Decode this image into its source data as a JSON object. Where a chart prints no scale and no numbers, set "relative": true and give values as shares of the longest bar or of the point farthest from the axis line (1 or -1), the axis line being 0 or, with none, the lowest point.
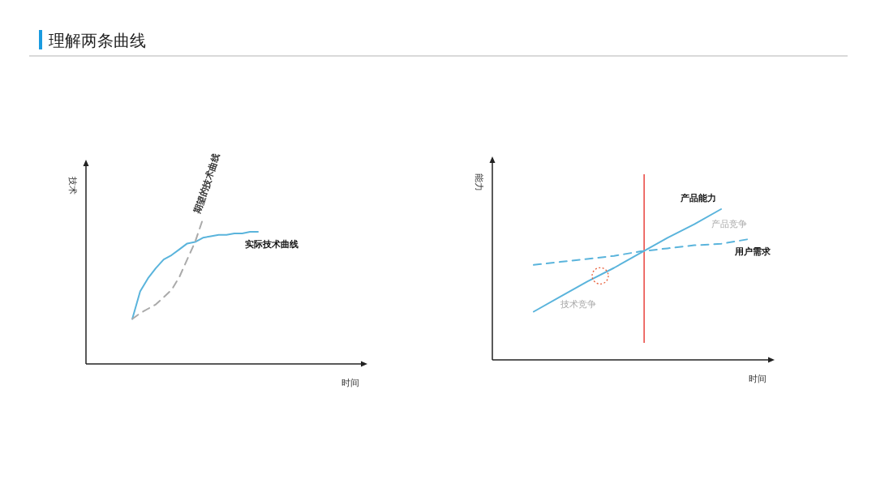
{
  "chart_data": [
    {
      "type": "line",
      "title": "理解两条曲线",
      "xlabel": "时间",
      "ylabel": "技术",
      "relative": true,
      "categories": [
        null,
        null,
        null,
        null,
        null,
        null,
        null,
        null,
        null,
        null,
        null,
        null,
        null,
        null,
        null,
        null,
        null,
        null,
        null,
        null,
        null,
        null,
        null,
        null,
        null,
        null,
        null,
        null,
        null,
        null,
        null,
        null,
        null,
        null,
        null,
        null
      ],
      "series": [
        {
          "name": "实际技术曲线",
          "color": "#5ab4dc",
          "values": [
            null,
            null,
            null,
            null,
            null,
            null,
            0.31,
            0.5,
            0.59,
            0.66,
            0.72,
            0.75,
            0.79,
            0.83,
            0.84,
            0.87,
            0.88,
            0.89,
            0.89,
            0.9,
            0.9,
            0.91,
            0.91,
            null,
            null,
            null,
            null,
            null,
            null,
            null,
            null,
            null,
            null,
            null,
            null,
            null
          ]
        },
        {
          "name": "期望的技术曲线",
          "color": "#aaaaaa",
          "line_style": "dashed",
          "values": [
            null,
            null,
            null,
            null,
            null,
            null,
            0.31,
            0.35,
            0.38,
            0.41,
            0.46,
            0.51,
            0.6,
            0.72,
            0.84,
            1,
            null,
            null,
            null,
            null,
            null,
            null,
            null,
            null,
            null,
            null,
            null,
            null,
            null,
            null,
            null,
            null,
            null,
            null,
            null,
            null
          ]
        }
      ]
    },
    {
      "type": "line",
      "xlabel": "时间",
      "ylabel": "能力",
      "relative": true,
      "categories": [
        null,
        null,
        null,
        null,
        null,
        null,
        null,
        null,
        null,
        null,
        null
      ],
      "series": [
        {
          "name": "产品能力",
          "color": "#5ab4dc",
          "values": [
            null,
            0.32,
            0.42,
            0.52,
            0.61,
            0.71,
            0.81,
            0.9,
            1,
            null,
            null
          ]
        },
        {
          "name": "用户需求",
          "color": "#5ab4dc",
          "line_style": "dashed",
          "values": [
            null,
            0.63,
            0.65,
            0.67,
            0.69,
            0.72,
            0.74,
            0.76,
            0.77,
            0.8,
            null
          ]
        }
      ],
      "annotations": [
        "技术竞争",
        "产品竞争"
      ]
    }
  ]
}
